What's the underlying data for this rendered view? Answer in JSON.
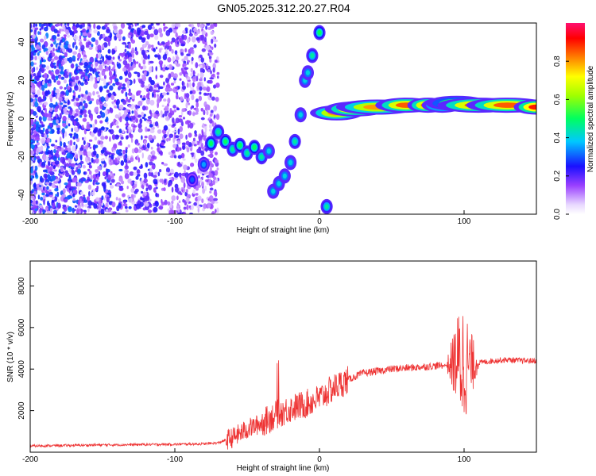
{
  "title": "GN05.2025.312.20.27.R04",
  "chart_data": [
    {
      "type": "heatmap",
      "xlabel": "Height of straight line (km)",
      "ylabel": "Frequency (Hz)",
      "xlim": [
        -200,
        150
      ],
      "ylim": [
        -50,
        50
      ],
      "xticks": [
        -200,
        -100,
        0,
        100
      ],
      "yticks": [
        -40,
        -20,
        0,
        20,
        40
      ],
      "colorbar": {
        "label": "Normalized spectral amplitude",
        "range": [
          0,
          1
        ],
        "ticks": [
          0.0,
          0.2,
          0.4,
          0.6,
          0.8
        ],
        "colormap": "rainbow"
      },
      "noise_region": {
        "x": [
          -200,
          -70
        ],
        "y": [
          -50,
          50
        ],
        "amplitude": [
          0.05,
          0.35
        ]
      },
      "main_track": [
        {
          "x": -88,
          "y": -32,
          "a": 0.3
        },
        {
          "x": -80,
          "y": -24,
          "a": 0.35
        },
        {
          "x": -75,
          "y": -13,
          "a": 0.5
        },
        {
          "x": -70,
          "y": -7,
          "a": 0.45
        },
        {
          "x": -65,
          "y": -12,
          "a": 0.5
        },
        {
          "x": -60,
          "y": -16,
          "a": 0.45
        },
        {
          "x": -55,
          "y": -14,
          "a": 0.5
        },
        {
          "x": -50,
          "y": -18,
          "a": 0.45
        },
        {
          "x": -45,
          "y": -15,
          "a": 0.5
        },
        {
          "x": -40,
          "y": -20,
          "a": 0.45
        },
        {
          "x": -35,
          "y": -17,
          "a": 0.4
        },
        {
          "x": -32,
          "y": -38,
          "a": 0.4
        },
        {
          "x": -28,
          "y": -34,
          "a": 0.4
        },
        {
          "x": -24,
          "y": -30,
          "a": 0.4
        },
        {
          "x": -20,
          "y": -23,
          "a": 0.4
        },
        {
          "x": -17,
          "y": -12,
          "a": 0.45
        },
        {
          "x": -13,
          "y": 2,
          "a": 0.4
        },
        {
          "x": -10,
          "y": 20,
          "a": 0.4
        },
        {
          "x": -8,
          "y": 24,
          "a": 0.4
        },
        {
          "x": -5,
          "y": 33,
          "a": 0.45
        },
        {
          "x": 0,
          "y": 45,
          "a": 0.5
        },
        {
          "x": 5,
          "y": -46,
          "a": 0.45
        },
        {
          "x": 12,
          "y": 3,
          "a": 0.8
        },
        {
          "x": 25,
          "y": 5,
          "a": 0.85
        },
        {
          "x": 40,
          "y": 6,
          "a": 0.8
        },
        {
          "x": 60,
          "y": 7,
          "a": 0.85
        },
        {
          "x": 75,
          "y": 7,
          "a": 0.85
        },
        {
          "x": 85,
          "y": 7,
          "a": 0.7
        },
        {
          "x": 95,
          "y": 8,
          "a": 0.6
        },
        {
          "x": 110,
          "y": 7,
          "a": 0.85
        },
        {
          "x": 130,
          "y": 7,
          "a": 0.85
        },
        {
          "x": 150,
          "y": 6,
          "a": 0.9
        }
      ]
    },
    {
      "type": "line",
      "xlabel": "Height of straight line (km)",
      "ylabel": "SNR (10 * v/v)",
      "xlim": [
        -200,
        150
      ],
      "ylim": [
        0,
        9200
      ],
      "xticks": [
        -200,
        -100,
        0,
        100
      ],
      "yticks": [
        2000,
        4000,
        6000,
        8000
      ],
      "color": "#ee3333",
      "series": [
        {
          "x": [
            -200,
            -150,
            -100,
            -80,
            -70,
            -60,
            -50,
            -40,
            -30,
            -20,
            -10,
            0,
            10,
            20,
            30,
            40,
            50,
            60,
            70,
            80,
            90,
            95,
            100,
            105,
            110,
            120,
            130,
            140,
            150
          ],
          "values": [
            300,
            350,
            380,
            400,
            450,
            700,
            1100,
            1400,
            1800,
            2100,
            2300,
            2600,
            3100,
            3500,
            3800,
            3900,
            4000,
            4050,
            4100,
            4150,
            4200,
            4400,
            4300,
            4200,
            4300,
            4400,
            4450,
            4400,
            4400
          ]
        }
      ]
    }
  ]
}
